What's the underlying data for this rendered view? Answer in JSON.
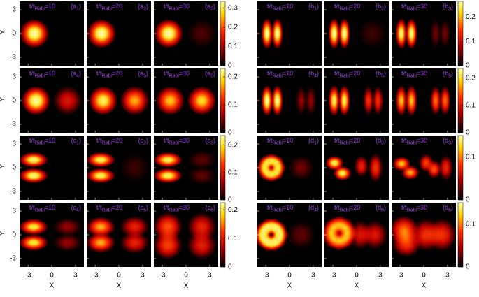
{
  "x_label": "X",
  "y_label": "Y",
  "xticks": [
    -3,
    0,
    3
  ],
  "yticks": [
    3,
    0,
    -3
  ],
  "groups": [
    {
      "rows": [
        {
          "cbar_lim": [
            0,
            0.335
          ],
          "cbar_ticks": [
            0,
            0.1,
            0.2,
            0.3
          ],
          "panels": [
            {
              "t": "t/t",
              "sub": "Rabi",
              "time": "=10",
              "tag": "(a",
              "tag_sub": "1",
              "close": ")"
            },
            {
              "t": "t/t",
              "sub": "Rabi",
              "time": "=20",
              "tag": "(a",
              "tag_sub": "2",
              "close": ")"
            },
            {
              "t": "t/t",
              "sub": "Rabi",
              "time": "=30",
              "tag": "(a",
              "tag_sub": "3",
              "close": ")"
            }
          ]
        },
        {
          "cbar_lim": [
            0,
            0.23
          ],
          "cbar_ticks": [
            0,
            0.1,
            0.2
          ],
          "panels": [
            {
              "t": "t/t",
              "sub": "Rabi",
              "time": "=10",
              "tag": "(a",
              "tag_sub": "4",
              "close": ")"
            },
            {
              "t": "t/t",
              "sub": "Rabi",
              "time": "=20",
              "tag": "(a",
              "tag_sub": "5",
              "close": ")"
            },
            {
              "t": "t/t",
              "sub": "Rabi",
              "time": "=30",
              "tag": "(a",
              "tag_sub": "6",
              "close": ")"
            }
          ]
        },
        {
          "cbar_lim": [
            0,
            0.235
          ],
          "cbar_ticks": [
            0,
            0.1,
            0.2
          ],
          "panels": [
            {
              "t": "t/t",
              "sub": "Rabi",
              "time": "=10",
              "tag": "(c",
              "tag_sub": "1",
              "close": ")"
            },
            {
              "t": "t/t",
              "sub": "Rabi",
              "time": "=20",
              "tag": "(c",
              "tag_sub": "2",
              "close": ")"
            },
            {
              "t": "t/t",
              "sub": "Rabi",
              "time": "=30",
              "tag": "(c",
              "tag_sub": "3",
              "close": ")"
            }
          ]
        },
        {
          "cbar_lim": [
            0,
            0.225
          ],
          "cbar_ticks": [
            0,
            0.1,
            0.2
          ],
          "panels": [
            {
              "t": "t/t",
              "sub": "Rabi",
              "time": "=10",
              "tag": "(c",
              "tag_sub": "4",
              "close": ")"
            },
            {
              "t": "t/t",
              "sub": "Rabi",
              "time": "=20",
              "tag": "(c",
              "tag_sub": "5",
              "close": ")"
            },
            {
              "t": "t/t",
              "sub": "Rabi",
              "time": "=30",
              "tag": "(c",
              "tag_sub": "6",
              "close": ")"
            }
          ]
        }
      ]
    },
    {
      "rows": [
        {
          "cbar_lim": [
            0,
            0.265
          ],
          "cbar_ticks": [
            0,
            0.1,
            0.2
          ],
          "panels": [
            {
              "t": "t/t",
              "sub": "Rabi",
              "time": "=10",
              "tag": "(b",
              "tag_sub": "1",
              "close": ")"
            },
            {
              "t": "t/t",
              "sub": "Rabi",
              "time": "=20",
              "tag": "(b",
              "tag_sub": "2",
              "close": ")"
            },
            {
              "t": "t/t",
              "sub": "Rabi",
              "time": "=30",
              "tag": "(b",
              "tag_sub": "3",
              "close": ")"
            }
          ]
        },
        {
          "cbar_lim": [
            0,
            0.235
          ],
          "cbar_ticks": [
            0,
            0.1,
            0.2
          ],
          "panels": [
            {
              "t": "t/t",
              "sub": "Rabi",
              "time": "=10",
              "tag": "(b",
              "tag_sub": "4",
              "close": ")"
            },
            {
              "t": "t/t",
              "sub": "Rabi",
              "time": "=20",
              "tag": "(b",
              "tag_sub": "5",
              "close": ")"
            },
            {
              "t": "t/t",
              "sub": "Rabi",
              "time": "=30",
              "tag": "(b",
              "tag_sub": "6",
              "close": ")"
            }
          ]
        },
        {
          "cbar_lim": [
            0,
            0.15
          ],
          "cbar_ticks": [
            0,
            0.1
          ],
          "panels": [
            {
              "t": "t/t",
              "sub": "Rabi",
              "time": "=10",
              "tag": "(d",
              "tag_sub": "1",
              "close": ")"
            },
            {
              "t": "t/t",
              "sub": "Rabi",
              "time": "=20",
              "tag": "(d",
              "tag_sub": "2",
              "close": ")"
            },
            {
              "t": "t/t",
              "sub": "Rabi",
              "time": "=30",
              "tag": "(d",
              "tag_sub": "3",
              "close": ")"
            }
          ]
        },
        {
          "cbar_lim": [
            0,
            0.15
          ],
          "cbar_ticks": [
            0,
            0.1
          ],
          "panels": [
            {
              "t": "t/t",
              "sub": "Rabi",
              "time": "=10",
              "tag": "(d",
              "tag_sub": "4",
              "close": ")"
            },
            {
              "t": "t/t",
              "sub": "Rabi",
              "time": "=20",
              "tag": "(d",
              "tag_sub": "5",
              "close": ")"
            },
            {
              "t": "t/t",
              "sub": "Rabi",
              "time": "=30",
              "tag": "(d",
              "tag_sub": "6",
              "close": ")"
            }
          ]
        }
      ]
    }
  ]
}
